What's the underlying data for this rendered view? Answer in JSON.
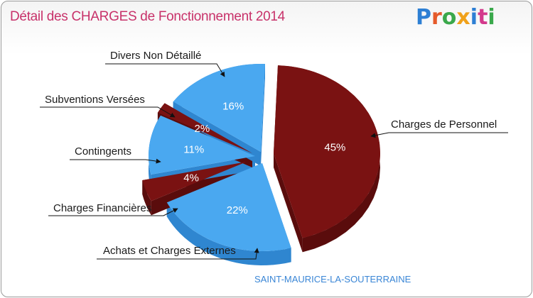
{
  "header": {
    "title": "Détail des CHARGES de Fonctionnement 2014",
    "logo_text": "Proxiti",
    "commune": "SAINT-MAURICE-LA-SOUTERRAINE"
  },
  "colors": {
    "title": "#c8326a",
    "blue_top": "#4aa8f0",
    "blue_side": "#2f86d0",
    "red_top": "#7a1212",
    "red_side": "#5a0c0c",
    "commune": "#3a86d6",
    "logo": [
      "#2d7fd4",
      "#e55a2b",
      "#3aa84b",
      "#f0a11a",
      "#2d7fd4",
      "#d33a8c",
      "#3aa84b"
    ]
  },
  "chart_data": {
    "type": "pie",
    "title": "Détail des CHARGES de Fonctionnement 2014",
    "slices": [
      {
        "label": "Charges de Personnel",
        "value": 45,
        "pct_label": "45%",
        "color": "red"
      },
      {
        "label": "Achats et Charges Externes",
        "value": 22,
        "pct_label": "22%",
        "color": "blue"
      },
      {
        "label": "Charges Financières",
        "value": 4,
        "pct_label": "4%",
        "color": "red"
      },
      {
        "label": "Contingents",
        "value": 11,
        "pct_label": "11%",
        "color": "blue"
      },
      {
        "label": "Subventions Versées",
        "value": 2,
        "pct_label": "2%",
        "color": "red"
      },
      {
        "label": "Divers Non Détaillé",
        "value": 16,
        "pct_label": "16%",
        "color": "blue"
      }
    ]
  }
}
